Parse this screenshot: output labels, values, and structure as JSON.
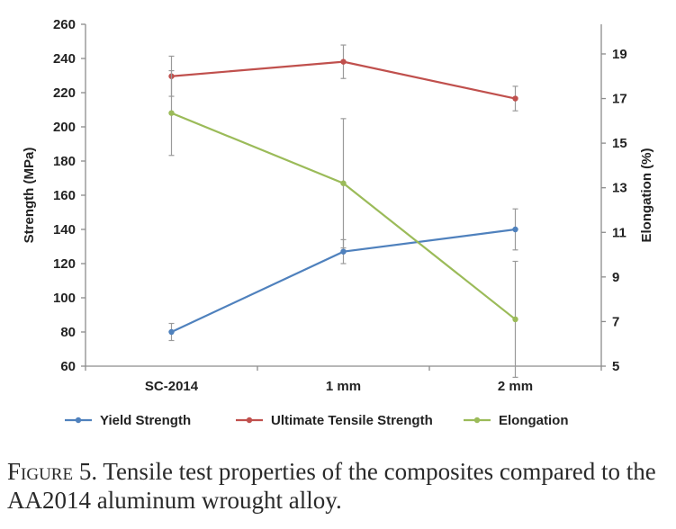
{
  "chart_data": {
    "type": "line",
    "categories": [
      "SC-2014",
      "1 mm",
      "2 mm"
    ],
    "ylabel": "Strength (MPa)",
    "y2label": "Elongation (%)",
    "ylim": [
      60,
      260
    ],
    "yticks": [
      60,
      80,
      100,
      120,
      140,
      160,
      180,
      200,
      220,
      240,
      260
    ],
    "y2lim": [
      5,
      20.33
    ],
    "y2ticks": [
      5,
      7,
      9,
      11,
      13,
      15,
      17,
      19
    ],
    "grid": false,
    "legend_position": "bottom",
    "series": [
      {
        "name": "Yield Strength",
        "axis": "left",
        "color": "#4f81bd",
        "values": [
          80,
          127,
          140
        ],
        "errors": [
          5,
          7,
          12
        ]
      },
      {
        "name": "Ultimate Tensile Strength",
        "axis": "right",
        "color": "#c0504d",
        "values": [
          18.0,
          18.65,
          17.0
        ],
        "errors": [
          0.9,
          0.75,
          0.55
        ]
      },
      {
        "name": "Elongation",
        "axis": "right",
        "color": "#9bbb59",
        "values": [
          16.35,
          13.2,
          7.1
        ],
        "errors": [
          1.9,
          2.9,
          2.6
        ]
      }
    ]
  },
  "caption": {
    "label": "Figure 5.",
    "text": " Tensile test properties of the composites compared to the AA2014 aluminum wrought alloy."
  }
}
